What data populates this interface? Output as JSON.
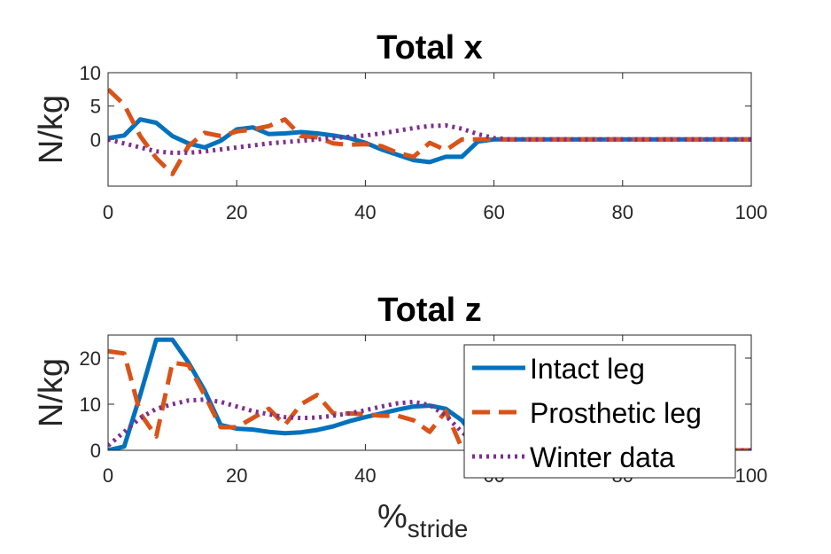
{
  "figure": {
    "xlabel_main": "%",
    "xlabel_sub": "stride"
  },
  "legend": {
    "items": [
      {
        "label": "Intact leg",
        "color": "#0072BD",
        "style": "solid"
      },
      {
        "label": "Prosthetic leg",
        "color": "#D95319",
        "style": "dashed"
      },
      {
        "label": "Winter data",
        "color": "#7E2F8E",
        "style": "dotted"
      }
    ]
  },
  "chart_data": [
    {
      "type": "line",
      "title": "Total x",
      "ylabel": "N/kg",
      "xlabel": "",
      "xlim": [
        0,
        100
      ],
      "ylim": [
        -7,
        10
      ],
      "xticks": [
        0,
        20,
        40,
        60,
        80,
        100
      ],
      "yticks": [
        0,
        5,
        10
      ],
      "grid": false,
      "series": [
        {
          "name": "Intact leg",
          "color": "#0072BD",
          "style": "solid",
          "x": [
            0,
            2.5,
            5,
            7.5,
            10,
            12.5,
            15,
            17.5,
            20,
            22.5,
            25,
            27.5,
            30,
            32.5,
            35,
            37.5,
            40,
            42.5,
            45,
            47.5,
            50,
            52.5,
            55,
            57.5,
            60,
            62.5,
            65,
            70,
            75,
            80,
            85,
            90,
            95,
            100
          ],
          "y": [
            0.2,
            0.6,
            3.0,
            2.5,
            0.5,
            -0.6,
            -1.2,
            -0.2,
            1.5,
            1.8,
            0.8,
            0.9,
            1.1,
            0.9,
            0.6,
            0.2,
            -0.5,
            -1.5,
            -2.3,
            -3.1,
            -3.4,
            -2.6,
            -2.6,
            -0.3,
            0.0,
            0.0,
            0.0,
            0.0,
            0.0,
            0.0,
            0.0,
            0.0,
            0.0,
            0.0
          ]
        },
        {
          "name": "Prosthetic leg",
          "color": "#D95319",
          "style": "dashed",
          "x": [
            0,
            2.5,
            5,
            7.5,
            10,
            12.5,
            15,
            17.5,
            20,
            22.5,
            25,
            27.5,
            30,
            32.5,
            35,
            37.5,
            40,
            42.5,
            45,
            47.5,
            50,
            52.5,
            55,
            57.5,
            60,
            62.5,
            65,
            70,
            75,
            80,
            85,
            90,
            95,
            100
          ],
          "y": [
            7.5,
            5.2,
            0.5,
            -2.8,
            -5.2,
            -1.0,
            1.0,
            0.5,
            1.2,
            1.5,
            2.0,
            3.0,
            0.5,
            0.3,
            -0.6,
            -0.8,
            -0.7,
            -1.0,
            -2.0,
            -2.6,
            -0.5,
            -1.6,
            0.0,
            0.0,
            0.0,
            0.0,
            0.0,
            0.0,
            0.0,
            0.0,
            0.0,
            0.0,
            0.0,
            0.0
          ]
        },
        {
          "name": "Winter data",
          "color": "#7E2F8E",
          "style": "dotted",
          "x": [
            0,
            2.5,
            5,
            7.5,
            10,
            12.5,
            15,
            17.5,
            20,
            22.5,
            25,
            27.5,
            30,
            32.5,
            35,
            37.5,
            40,
            42.5,
            45,
            47.5,
            50,
            52.5,
            55,
            57.5,
            60,
            62.5,
            65,
            70,
            75,
            80,
            85,
            90,
            95,
            100
          ],
          "y": [
            0.0,
            -0.6,
            -1.2,
            -1.8,
            -2.0,
            -2.0,
            -1.8,
            -1.5,
            -1.2,
            -0.9,
            -0.6,
            -0.4,
            -0.2,
            0.0,
            0.2,
            0.4,
            0.6,
            0.9,
            1.3,
            1.7,
            2.0,
            2.1,
            1.6,
            0.8,
            0.2,
            0.0,
            0.0,
            0.0,
            0.0,
            0.0,
            0.0,
            0.0,
            0.0,
            0.0
          ]
        }
      ]
    },
    {
      "type": "line",
      "title": "Total z",
      "ylabel": "N/kg",
      "xlabel": "%stride",
      "xlim": [
        0,
        100
      ],
      "ylim": [
        0,
        25
      ],
      "xticks": [
        0,
        20,
        40,
        60,
        80,
        100
      ],
      "yticks": [
        0,
        10,
        20
      ],
      "grid": false,
      "legend_position": "top-right",
      "series": [
        {
          "name": "Intact leg",
          "color": "#0072BD",
          "style": "solid",
          "x": [
            0,
            2.5,
            5,
            7.5,
            10,
            12.5,
            15,
            17.5,
            20,
            22.5,
            25,
            27.5,
            30,
            32.5,
            35,
            37.5,
            40,
            42.5,
            45,
            47.5,
            50,
            52.5,
            55,
            57.5,
            60,
            65,
            70,
            75,
            80,
            85,
            90,
            95,
            100
          ],
          "y": [
            0.0,
            0.8,
            12.0,
            24.0,
            24.0,
            19.0,
            13.0,
            5.5,
            4.7,
            4.5,
            4.0,
            3.7,
            3.9,
            4.4,
            5.2,
            6.3,
            7.2,
            8.0,
            8.8,
            9.5,
            9.7,
            9.0,
            6.5,
            2.0,
            0.0,
            0.0,
            0.0,
            0.0,
            0.0,
            0.0,
            0.0,
            0.0,
            0.0
          ]
        },
        {
          "name": "Prosthetic leg",
          "color": "#D95319",
          "style": "dashed",
          "x": [
            0,
            2.5,
            5,
            7.5,
            10,
            12.5,
            15,
            17.5,
            20,
            22.5,
            25,
            27.5,
            30,
            32.5,
            35,
            37.5,
            40,
            42.5,
            45,
            47.5,
            50,
            52.5,
            55,
            57.5,
            60,
            65,
            70,
            75,
            80,
            85,
            90,
            95,
            100
          ],
          "y": [
            21.5,
            21.0,
            8.0,
            3.0,
            19.0,
            18.5,
            12.0,
            5.0,
            5.0,
            7.0,
            9.0,
            5.5,
            10.0,
            12.0,
            8.0,
            8.0,
            7.8,
            7.5,
            7.5,
            6.5,
            4.0,
            8.5,
            0.5,
            0.0,
            0.0,
            0.0,
            0.0,
            0.0,
            0.0,
            0.0,
            0.0,
            0.0,
            0.0
          ]
        },
        {
          "name": "Winter data",
          "color": "#7E2F8E",
          "style": "dotted",
          "x": [
            0,
            2.5,
            5,
            7.5,
            10,
            12.5,
            15,
            17.5,
            20,
            22.5,
            25,
            27.5,
            30,
            32.5,
            35,
            37.5,
            40,
            42.5,
            45,
            47.5,
            50,
            52.5,
            55,
            57.5,
            60,
            65,
            70,
            75,
            80,
            85,
            90,
            95,
            100
          ],
          "y": [
            1.0,
            4.0,
            7.0,
            9.0,
            10.0,
            10.8,
            11.0,
            10.5,
            9.5,
            8.5,
            7.8,
            7.2,
            7.0,
            7.1,
            7.5,
            8.0,
            8.7,
            9.5,
            10.2,
            10.5,
            9.8,
            7.5,
            4.0,
            1.0,
            0.0,
            0.0,
            0.0,
            0.0,
            0.0,
            0.0,
            0.0,
            0.0,
            0.0
          ]
        }
      ]
    }
  ]
}
